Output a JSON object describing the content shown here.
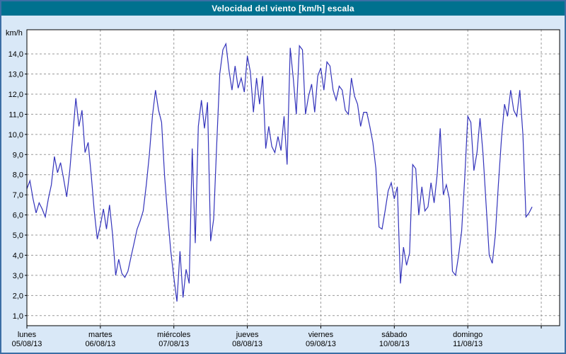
{
  "header": {
    "title": "Velocidad del viento [km/h] escala"
  },
  "colors": {
    "titlebar": "#00718f",
    "border": "#3b6ea5",
    "background": "#d9e8f7",
    "plot_background": "#ffffff",
    "plot_border": "#000000",
    "grid": "#9a9a9a",
    "line": "#3333bb"
  },
  "chart_data": {
    "type": "line",
    "title": "Velocidad del viento [km/h] escala",
    "ylabel": "km/h",
    "grid": true,
    "legend": false,
    "y_ticks": [
      1,
      2,
      3,
      4,
      5,
      6,
      7,
      8,
      9,
      10,
      11,
      12,
      13,
      14
    ],
    "y_tick_decimal_separator": ",",
    "y_range": [
      0.5,
      15.2
    ],
    "x_range_days": [
      0,
      7.25
    ],
    "sample_interval_hours": 1,
    "days": [
      {
        "name": "lunes",
        "date": "05/08/13"
      },
      {
        "name": "martes",
        "date": "06/08/13"
      },
      {
        "name": "miércoles",
        "date": "07/08/13"
      },
      {
        "name": "jueves",
        "date": "08/08/13"
      },
      {
        "name": "viernes",
        "date": "09/08/13"
      },
      {
        "name": "sábado",
        "date": "10/08/13"
      },
      {
        "name": "domingo",
        "date": "11/08/13"
      }
    ],
    "values": [
      7.3,
      7.7,
      6.8,
      6.1,
      6.6,
      6.3,
      5.9,
      6.8,
      7.5,
      8.9,
      8.1,
      8.6,
      7.8,
      6.9,
      8.2,
      10.0,
      11.8,
      10.4,
      11.2,
      9.1,
      9.6,
      8.0,
      6.2,
      4.8,
      5.5,
      6.3,
      5.3,
      6.5,
      5.0,
      3.0,
      3.8,
      3.1,
      2.9,
      3.2,
      3.9,
      4.6,
      5.3,
      5.7,
      6.2,
      7.5,
      9.0,
      10.9,
      12.2,
      11.2,
      10.6,
      7.9,
      5.9,
      4.2,
      2.9,
      1.7,
      4.2,
      1.9,
      3.3,
      2.6,
      9.3,
      4.6,
      10.4,
      11.7,
      10.3,
      11.6,
      4.7,
      5.8,
      9.5,
      13.0,
      14.2,
      14.5,
      13.2,
      12.2,
      13.4,
      12.3,
      12.8,
      12.1,
      13.9,
      13.1,
      11.1,
      12.8,
      11.5,
      12.9,
      9.3,
      10.4,
      9.4,
      9.1,
      9.9,
      9.2,
      10.9,
      8.5,
      14.3,
      12.8,
      11.0,
      14.4,
      14.2,
      11.0,
      11.9,
      12.5,
      11.1,
      12.9,
      13.3,
      12.2,
      13.6,
      13.4,
      12.2,
      11.7,
      12.4,
      12.2,
      11.2,
      11.0,
      12.8,
      11.9,
      11.5,
      10.4,
      11.1,
      11.1,
      10.4,
      9.6,
      8.3,
      5.4,
      5.3,
      6.2,
      7.2,
      7.6,
      6.8,
      7.4,
      2.6,
      4.4,
      3.5,
      4.1,
      8.5,
      8.3,
      6.0,
      7.4,
      6.2,
      6.4,
      7.6,
      6.6,
      8.0,
      10.3,
      7.0,
      7.5,
      6.8,
      3.2,
      3.0,
      4.0,
      5.2,
      7.8,
      10.9,
      10.6,
      8.2,
      9.1,
      10.8,
      9.0,
      6.5,
      4.0,
      3.6,
      5.0,
      7.5,
      9.8,
      11.5,
      10.9,
      12.2,
      11.2,
      10.9,
      12.2,
      10.0,
      5.9,
      6.1,
      6.4
    ]
  }
}
